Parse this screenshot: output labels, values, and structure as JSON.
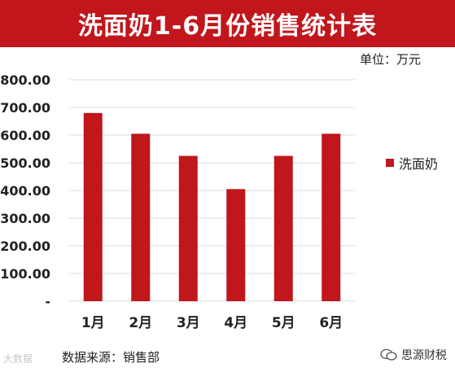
{
  "header": {
    "title": "洗面奶1-6月份销售统计表"
  },
  "unit_label": "单位：万元",
  "source_label": "数据来源：销售部",
  "watermarks": {
    "left": "大数据",
    "right": "思源财税"
  },
  "chart_data": {
    "type": "bar",
    "categories": [
      "1月",
      "2月",
      "3月",
      "4月",
      "5月",
      "6月"
    ],
    "series": [
      {
        "name": "洗面奶",
        "values": [
          680,
          605,
          525,
          405,
          525,
          605
        ],
        "color": "#c0161c"
      }
    ],
    "ylim": [
      0,
      800
    ],
    "yticks": [
      0,
      100,
      200,
      300,
      400,
      500,
      600,
      700,
      800
    ],
    "ytick_labels": [
      "-",
      "100.00",
      "200.00",
      "300.00",
      "400.00",
      "500.00",
      "600.00",
      "700.00",
      "800.00"
    ],
    "grid": true,
    "legend": "right"
  }
}
